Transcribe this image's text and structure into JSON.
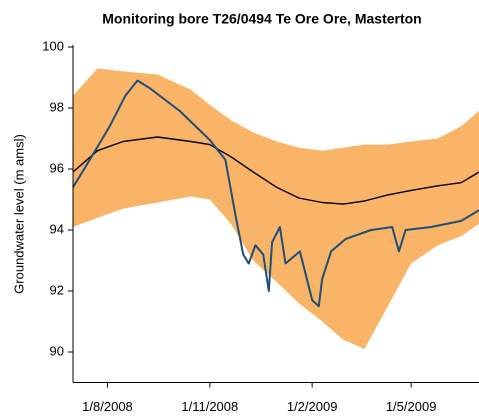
{
  "chart_data": {
    "type": "line",
    "title": "Monitoring bore T26/0494 Te Ore Ore, Masterton",
    "y_label": "Groundwater level (m amsl)",
    "xlim": [
      "2008-07-01",
      "2009-07-01"
    ],
    "xticks": [
      {
        "value": "2008-08-01",
        "label": "1/8/2008"
      },
      {
        "value": "2008-11-01",
        "label": "1/11/2008"
      },
      {
        "value": "2009-02-01",
        "label": "1/2/2009"
      },
      {
        "value": "2009-05-01",
        "label": "1/5/2009"
      }
    ],
    "ylim": [
      89,
      100
    ],
    "yticks": [
      90,
      92,
      94,
      96,
      98,
      100
    ],
    "x": [
      "2008-07-01",
      "2008-07-23",
      "2008-08-15",
      "2008-09-15",
      "2008-10-15",
      "2008-11-01",
      "2008-11-20",
      "2008-12-10",
      "2008-12-31",
      "2009-01-20",
      "2009-02-10",
      "2009-03-01",
      "2009-03-20",
      "2009-04-10",
      "2009-05-01",
      "2009-05-25",
      "2009-06-15",
      "2009-07-01"
    ],
    "band": {
      "color": "#f9b467",
      "upper": [
        98.4,
        99.3,
        99.2,
        99.1,
        98.6,
        98.1,
        97.6,
        97.2,
        96.9,
        96.7,
        96.6,
        96.7,
        96.8,
        96.8,
        96.9,
        97.0,
        97.4,
        97.9
      ],
      "lower": [
        94.1,
        94.4,
        94.7,
        94.9,
        95.1,
        95.0,
        94.2,
        93.0,
        92.3,
        91.6,
        91.0,
        90.4,
        90.1,
        91.5,
        92.9,
        93.5,
        93.8,
        94.2
      ]
    },
    "series": [
      {
        "color": "#000000",
        "values": [
          95.9,
          96.6,
          96.9,
          97.05,
          96.9,
          96.8,
          96.4,
          95.9,
          95.4,
          95.05,
          94.9,
          94.85,
          94.95,
          95.15,
          95.3,
          95.45,
          95.55,
          95.9
        ]
      },
      {
        "color": "#1f4e79",
        "x": [
          "2008-07-01",
          "2008-07-16",
          "2008-08-03",
          "2008-08-17",
          "2008-08-28",
          "2008-09-08",
          "2008-10-05",
          "2008-11-01",
          "2008-11-15",
          "2008-11-24",
          "2008-12-01",
          "2008-12-06",
          "2008-12-12",
          "2008-12-19",
          "2008-12-24",
          "2008-12-27",
          "2009-01-03",
          "2009-01-08",
          "2009-01-21",
          "2009-02-01",
          "2009-02-07",
          "2009-02-10",
          "2009-02-18",
          "2009-03-03",
          "2009-03-26",
          "2009-04-14",
          "2009-04-20",
          "2009-04-26",
          "2009-05-19",
          "2009-06-15",
          "2009-07-01"
        ],
        "values": [
          95.4,
          96.3,
          97.4,
          98.4,
          98.9,
          98.65,
          97.9,
          96.95,
          96.3,
          94.5,
          93.2,
          92.9,
          93.5,
          93.2,
          92.0,
          93.6,
          94.1,
          92.9,
          93.3,
          91.7,
          91.5,
          92.4,
          93.3,
          93.7,
          94.0,
          94.1,
          93.3,
          94.0,
          94.1,
          94.3,
          94.65
        ]
      }
    ]
  }
}
